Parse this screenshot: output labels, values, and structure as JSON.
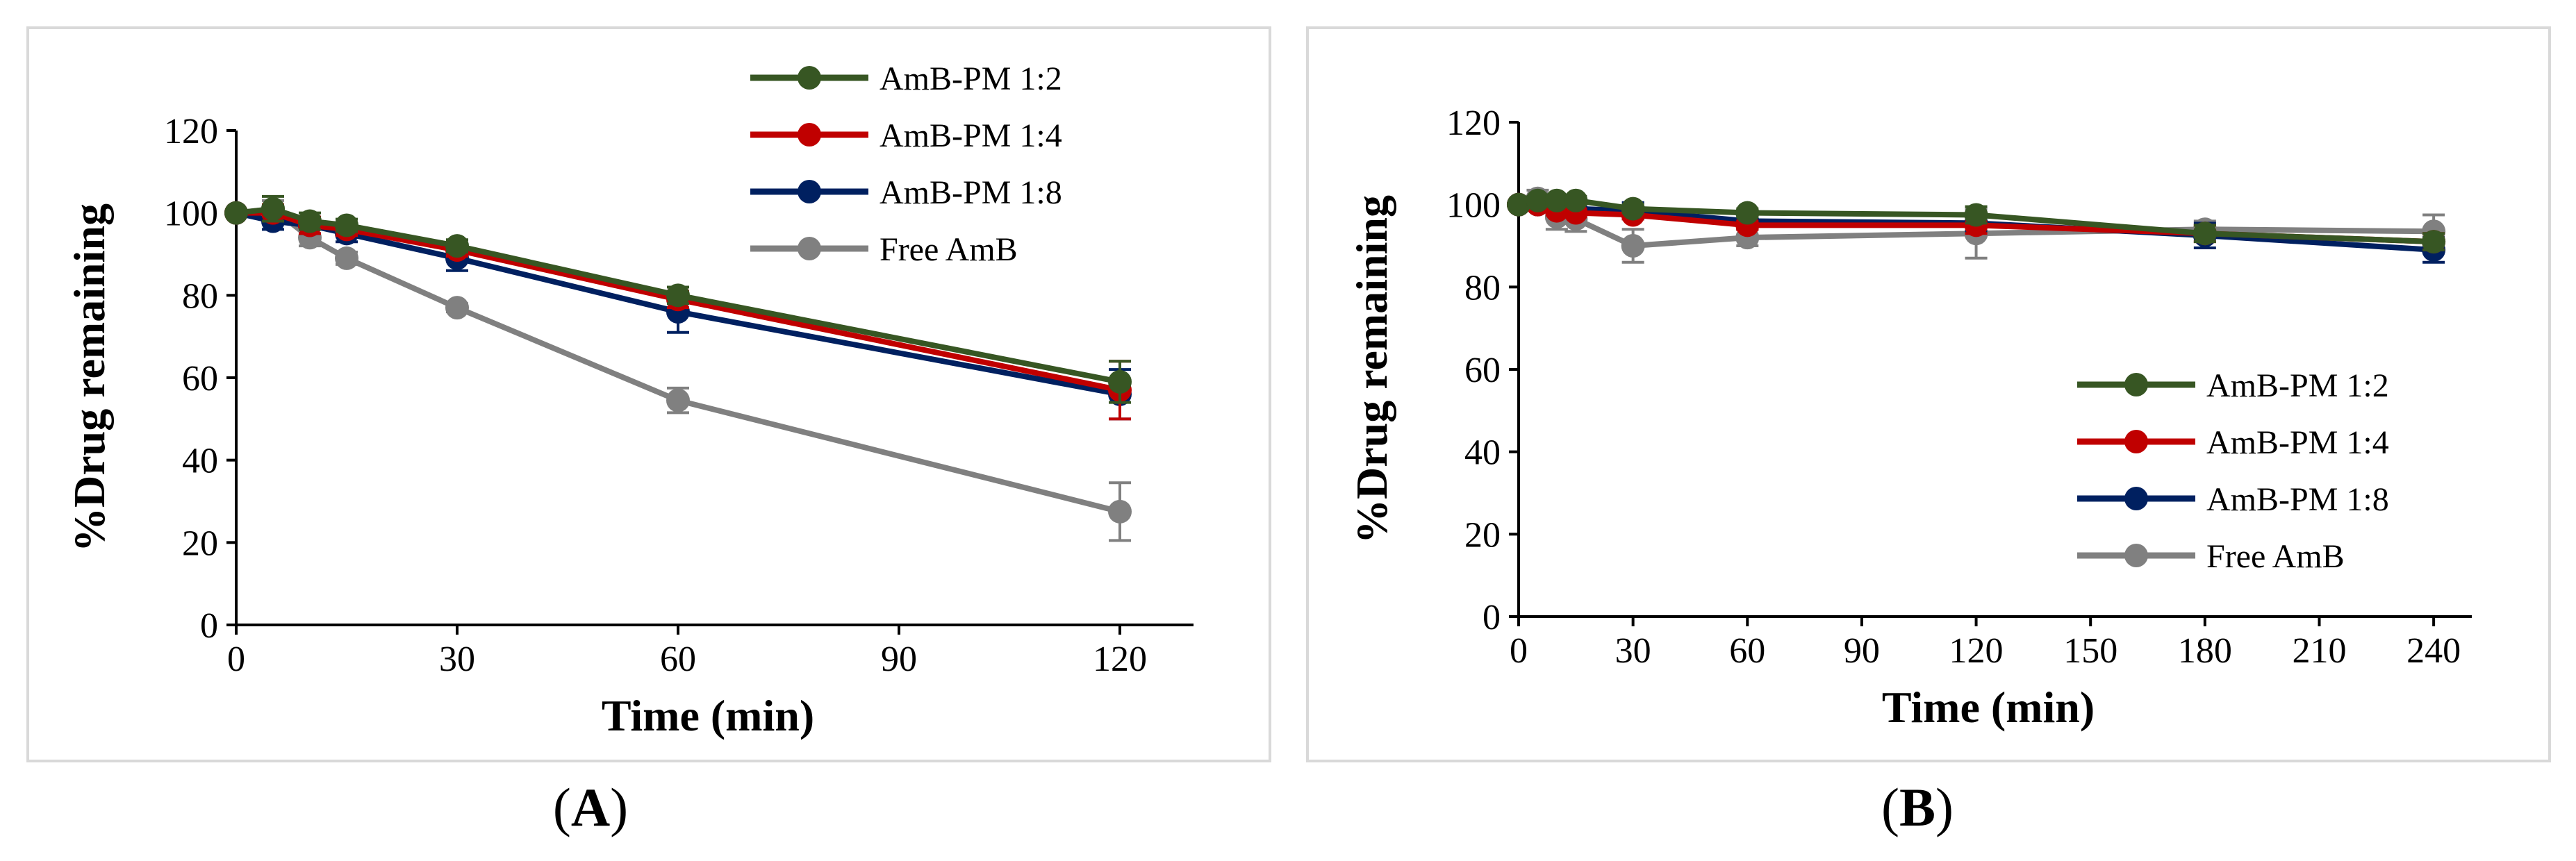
{
  "panels": {
    "a": {
      "label_open": "(",
      "label_letter": "A",
      "label_close": ")"
    },
    "b": {
      "label_open": "(",
      "label_letter": "B",
      "label_close": ")"
    }
  },
  "chart_data": [
    {
      "id": "A",
      "type": "line",
      "xlabel": "Time (min)",
      "ylabel": "%Drug remaining",
      "xlim": [
        0,
        130
      ],
      "ylim": [
        0,
        120
      ],
      "xticks": [
        0,
        30,
        60,
        90,
        120
      ],
      "yticks": [
        0,
        20,
        40,
        60,
        80,
        100,
        120
      ],
      "legend_position": "top-right",
      "grid": false,
      "x": [
        0,
        5,
        10,
        15,
        30,
        60,
        120
      ],
      "series": [
        {
          "name": "AmB-PM 1:2",
          "color": "#375623",
          "values": [
            100,
            101,
            98,
            97,
            92,
            80,
            59
          ],
          "errors": [
            0,
            3,
            2,
            1.5,
            1.5,
            2,
            5
          ]
        },
        {
          "name": "AmB-PM 1:4",
          "color": "#c00000",
          "values": [
            100,
            100,
            97,
            96,
            91,
            79,
            57
          ],
          "errors": [
            0,
            2,
            2,
            1.5,
            1.5,
            2,
            7
          ]
        },
        {
          "name": "AmB-PM 1:8",
          "color": "#002060",
          "values": [
            100,
            98,
            97,
            95,
            89,
            76,
            56
          ],
          "errors": [
            0,
            2,
            2,
            2,
            3,
            5,
            6
          ]
        },
        {
          "name": "Free AmB",
          "color": "#808080",
          "values": [
            100,
            101,
            94,
            89,
            77,
            54.5,
            27.5
          ],
          "errors": [
            0,
            2,
            2,
            1.5,
            1,
            3,
            7
          ]
        }
      ]
    },
    {
      "id": "B",
      "type": "line",
      "xlabel": "Time (min)",
      "ylabel": "%Drug remaining",
      "xlim": [
        0,
        250
      ],
      "ylim": [
        0,
        120
      ],
      "xticks": [
        0,
        30,
        60,
        90,
        120,
        150,
        180,
        210,
        240
      ],
      "yticks": [
        0,
        20,
        40,
        60,
        80,
        100,
        120
      ],
      "legend_position": "bottom-right",
      "grid": false,
      "x": [
        0,
        5,
        10,
        15,
        30,
        60,
        120,
        180,
        240
      ],
      "series": [
        {
          "name": "AmB-PM 1:2",
          "color": "#375623",
          "values": [
            100,
            101,
            101,
            101,
            99,
            98,
            97.5,
            93,
            91
          ],
          "errors": [
            0,
            1,
            1,
            1,
            1,
            1,
            2,
            2,
            2
          ]
        },
        {
          "name": "AmB-PM 1:4",
          "color": "#c00000",
          "values": [
            100,
            100,
            98.5,
            98,
            97.5,
            95,
            95,
            93,
            91
          ],
          "errors": [
            0,
            1,
            1,
            1,
            1,
            1,
            2,
            2,
            2
          ]
        },
        {
          "name": "AmB-PM 1:8",
          "color": "#002060",
          "values": [
            100,
            100,
            99.5,
            99,
            98.5,
            96,
            95.5,
            92.5,
            89
          ],
          "errors": [
            0,
            1,
            1,
            1,
            2,
            2,
            2,
            3,
            3
          ]
        },
        {
          "name": "Free AmB",
          "color": "#808080",
          "values": [
            100,
            101.5,
            97,
            96.5,
            90,
            92,
            93,
            94,
            93.5
          ],
          "errors": [
            0,
            2,
            3,
            3,
            4,
            2,
            6,
            2,
            4
          ]
        }
      ]
    }
  ]
}
